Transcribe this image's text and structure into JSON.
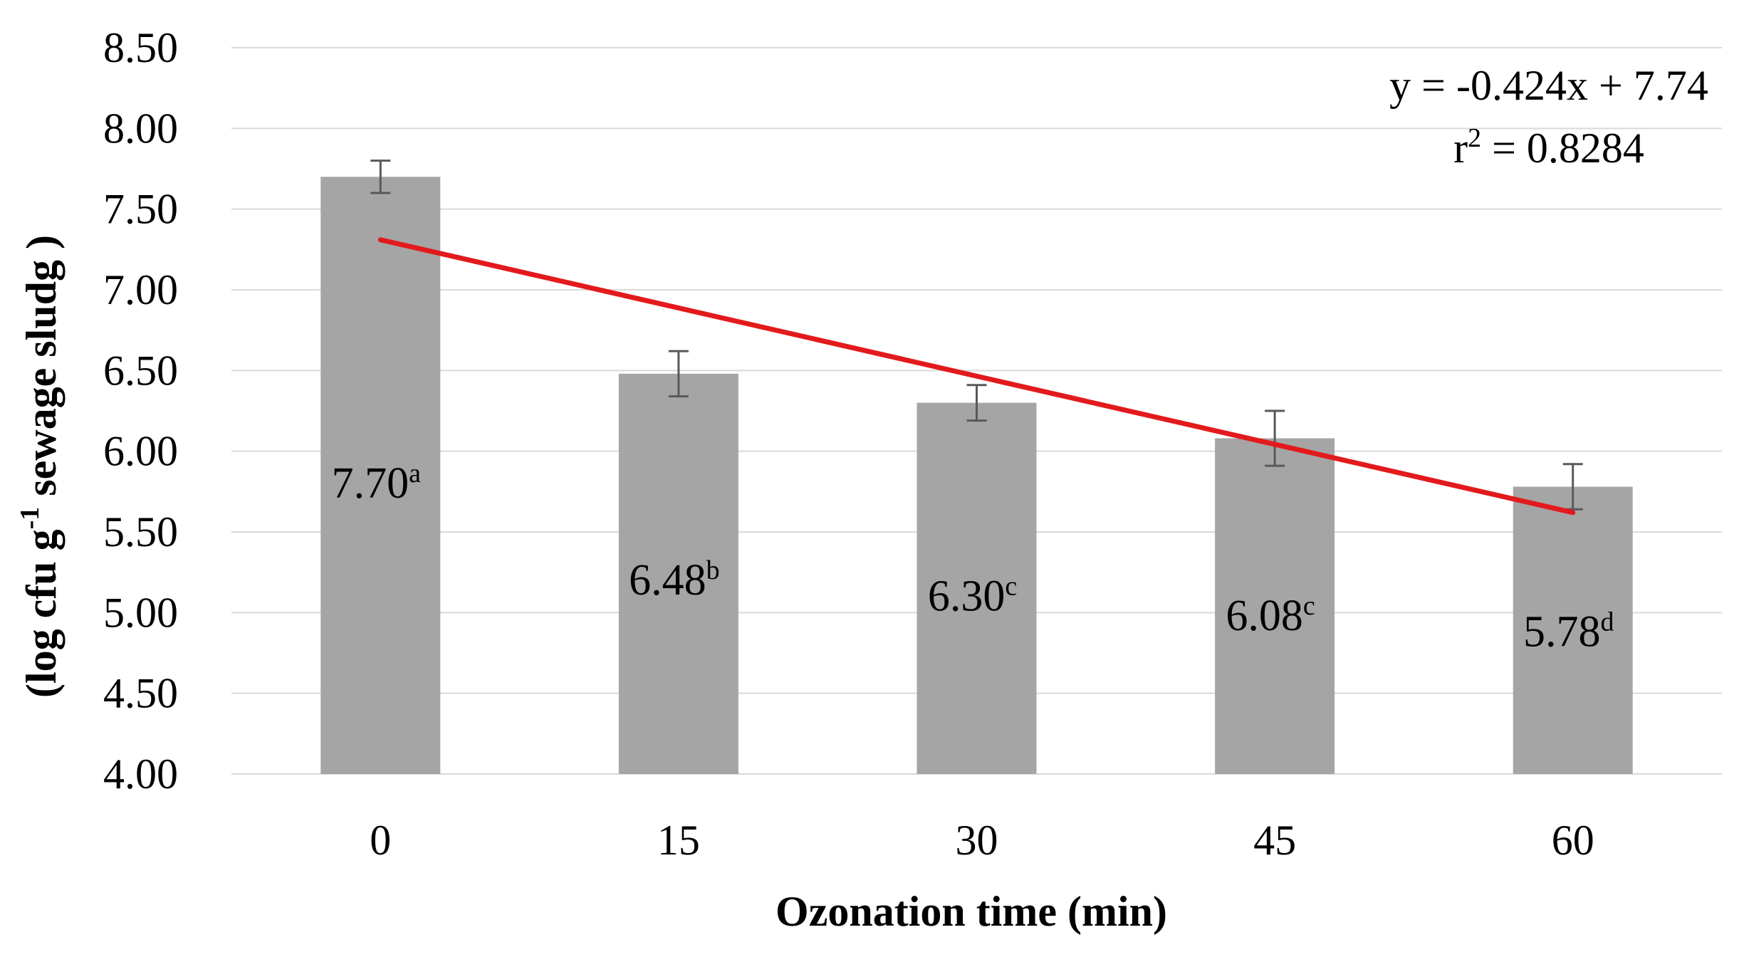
{
  "chart_data": {
    "type": "bar",
    "title": "",
    "xlabel": "Ozonation time (min)",
    "ylabel": {
      "prefix": "(log cfu g",
      "superscript": "-1",
      "suffix": " sewage sludg )"
    },
    "ylim": [
      4.0,
      8.5
    ],
    "yticks": [
      "4.00",
      "4.50",
      "5.00",
      "5.50",
      "6.00",
      "6.50",
      "7.00",
      "7.50",
      "8.00",
      "8.50"
    ],
    "grid": true,
    "categories": [
      "0",
      "15",
      "30",
      "45",
      "60"
    ],
    "values": [
      7.7,
      6.48,
      6.3,
      6.08,
      5.78
    ],
    "errors": [
      0.1,
      0.14,
      0.11,
      0.17,
      0.14
    ],
    "data_labels": [
      {
        "value": "7.70",
        "letter": "a"
      },
      {
        "value": "6.48",
        "letter": "b"
      },
      {
        "value": "6.30",
        "letter": "c"
      },
      {
        "value": "6.08",
        "letter": "c"
      },
      {
        "value": "5.78",
        "letter": "d"
      }
    ],
    "bar_label_y": [
      5.8,
      5.2,
      5.1,
      4.98,
      4.88
    ],
    "trendline": {
      "start": {
        "category_index": 0,
        "y": 7.31
      },
      "end": {
        "category_index": 4,
        "y": 5.62
      },
      "color": "#e31a1c"
    },
    "equation": "y = -0.424x + 7.74",
    "r2": {
      "prefix": "r",
      "superscript": "2",
      "suffix": " = 0.8284"
    },
    "colors": {
      "bar": "#a5a5a5",
      "grid": "#d9d9d9",
      "error": "#595959",
      "trend": "#e31a1c"
    }
  }
}
